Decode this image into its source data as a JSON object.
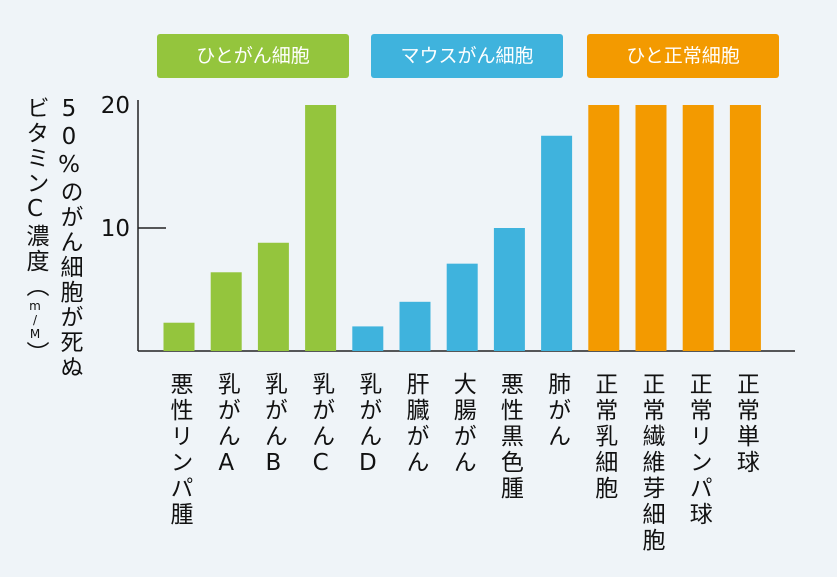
{
  "chart_data": {
    "type": "bar",
    "ylabel_lines": [
      "50%のがん細胞が死ぬ",
      "ビタミンC濃度（m/M）"
    ],
    "ylim": [
      0,
      20
    ],
    "yticks": [
      10,
      20
    ],
    "legend": [
      {
        "name": "ひとがん細胞",
        "color": "#94c53d"
      },
      {
        "name": "マウスがん細胞",
        "color": "#3fb3dd"
      },
      {
        "name": "ひと正常細胞",
        "color": "#f39a00"
      }
    ],
    "categories": [
      "悪性リンパ腫",
      "乳がんA",
      "乳がんB",
      "乳がんC",
      "乳がんD",
      "肝臓がん",
      "大腸がん",
      "悪性黒色腫",
      "肺がん",
      "正常乳細胞",
      "正常繊維芽細胞",
      "正常リンパ球",
      "正常単球"
    ],
    "values": [
      2.3,
      6.4,
      8.8,
      20,
      2.0,
      4.0,
      7.1,
      10.0,
      17.5,
      20,
      20,
      20,
      20
    ],
    "groups": [
      0,
      0,
      0,
      0,
      1,
      1,
      1,
      1,
      1,
      2,
      2,
      2,
      2
    ]
  }
}
